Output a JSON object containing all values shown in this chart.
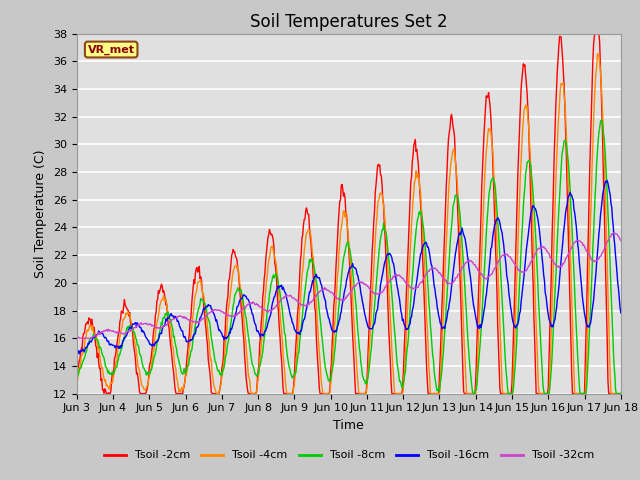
{
  "title": "Soil Temperatures Set 2",
  "xlabel": "Time",
  "ylabel": "Soil Temperature (C)",
  "ylim": [
    12,
    38
  ],
  "yticks": [
    12,
    14,
    16,
    18,
    20,
    22,
    24,
    26,
    28,
    30,
    32,
    34,
    36,
    38
  ],
  "xtick_labels": [
    "Jun 3",
    "Jun 4",
    "Jun 5",
    "Jun 6",
    "Jun 7",
    "Jun 8",
    "Jun 9",
    "Jun 10",
    "Jun 11",
    "Jun 12",
    "Jun 13",
    "Jun 14",
    "Jun 15",
    "Jun 16",
    "Jun 17",
    "Jun 18"
  ],
  "series_colors": [
    "#ff0000",
    "#ff8800",
    "#00cc00",
    "#0000ff",
    "#cc44cc"
  ],
  "series_labels": [
    "Tsoil -2cm",
    "Tsoil -4cm",
    "Tsoil -8cm",
    "Tsoil -16cm",
    "Tsoil -32cm"
  ],
  "fig_facecolor": "#c8c8c8",
  "plot_bg_color": "#e0e0e0",
  "annotation_text": "VR_met",
  "annotation_bg": "#ffff88",
  "annotation_border": "#8b4513",
  "n_points": 721,
  "days": 15,
  "title_fontsize": 12,
  "label_fontsize": 9,
  "tick_fontsize": 8
}
